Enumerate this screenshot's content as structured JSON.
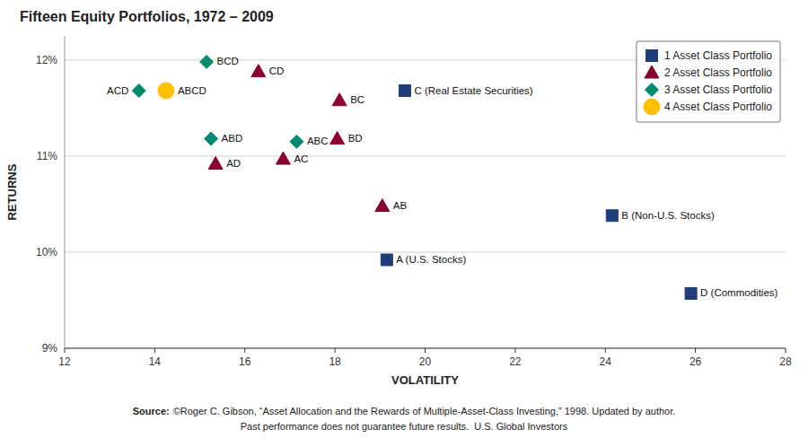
{
  "chart_data": {
    "type": "scatter",
    "title": "Fifteen Equity Portfolios, 1972 – 2009",
    "x_label": "VOLATILITY",
    "y_label": "RETURNS",
    "xlim": [
      12,
      28
    ],
    "ylim": [
      0.09,
      0.1225
    ],
    "xticks": [
      12,
      14,
      16,
      18,
      20,
      22,
      24,
      26,
      28
    ],
    "yticks": [
      {
        "value": 0.09,
        "label": "9%"
      },
      {
        "value": 0.1,
        "label": "10%"
      },
      {
        "value": 0.11,
        "label": "11%"
      },
      {
        "value": 0.12,
        "label": "12%"
      }
    ],
    "grid": true,
    "legend": "upper right",
    "series": [
      {
        "name": "1 Asset Class Portfolio",
        "color": "#1F3D7A",
        "marker": "square",
        "x": [
          19.15,
          24.15,
          19.55,
          25.9
        ],
        "values": [
          0.0992,
          0.1038,
          0.1168,
          0.0957
        ],
        "labels": [
          "A (U.S. Stocks)",
          "B (Non-U.S. Stocks)",
          "C (Real Estate Securities)",
          "D (Commodities)"
        ]
      },
      {
        "name": "2 Asset Class Portfolio",
        "color": "#8B0033",
        "marker": "triangle",
        "x": [
          19.05,
          16.85,
          15.35,
          18.1,
          18.05,
          16.3
        ],
        "values": [
          0.1048,
          0.1097,
          0.1092,
          0.1158,
          0.1118,
          0.1188
        ],
        "labels": [
          "AB",
          "AC",
          "AD",
          "BC",
          "BD",
          "CD"
        ]
      },
      {
        "name": "3 Asset Class Portfolio",
        "color": "#008B6E",
        "marker": "diamond",
        "x": [
          17.15,
          15.25,
          13.65,
          15.15
        ],
        "values": [
          0.1115,
          0.1118,
          0.1168,
          0.1198
        ],
        "labels": [
          "ABC",
          "ABD",
          "ACD",
          "BCD"
        ]
      },
      {
        "name": "4 Asset Class Portfolio",
        "color": "#FFC000",
        "marker": "circle",
        "x": [
          14.25
        ],
        "values": [
          0.1168
        ],
        "labels": [
          "ABCD"
        ]
      }
    ],
    "source_label": "Source:",
    "source": "©Roger C. Gibson, “Asset Allocation and the Rewards of Multiple-Asset-Class Investing,” 1998. Updated by author.",
    "footnote": "Past performance does not guarantee future results.  U.S. Global Investors"
  }
}
